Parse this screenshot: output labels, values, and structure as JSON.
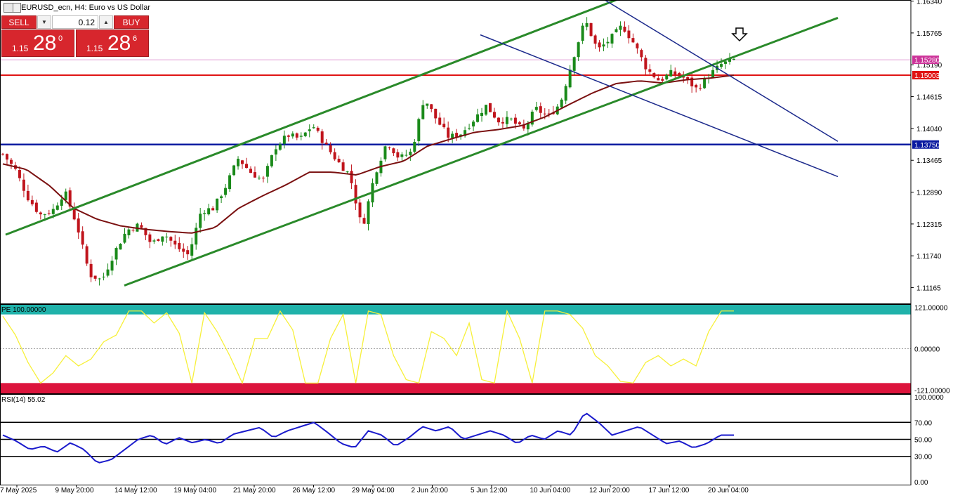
{
  "header": {
    "title": "EURUSD_ecn, H4:  Euro vs US Dollar"
  },
  "trade_panel": {
    "sell_label": "SELL",
    "buy_label": "BUY",
    "lot": "0.12",
    "sell_price": {
      "small": "1.15",
      "big": "28",
      "sup": "0"
    },
    "buy_price": {
      "small": "1.15",
      "big": "28",
      "sup": "6"
    }
  },
  "colors": {
    "bull": "#1a8a1a",
    "bear": "#c0141c",
    "ma": "#7a1010",
    "channel_green": "#2a8a2a",
    "channel_blue": "#1c2a8c",
    "level_red": "#e01414",
    "level_blue": "#0a1aa0",
    "current_price": "#cc3399",
    "ind_zone_top": "#20b2aa",
    "ind_zone_bottom": "#dc143c",
    "ind_line": "#f7f03a",
    "rsi_line": "#1a1acc"
  },
  "chart_data": [
    {
      "type": "line",
      "subtype": "candlestick",
      "series": [
        {
          "name": "EURUSD_ecn, H4"
        }
      ],
      "ylim": [
        1.1088,
        1.1636
      ],
      "price_axis_ticks": [
        "1.16340",
        "1.15765",
        "1.15190",
        "1.14615",
        "1.14040",
        "1.13465",
        "1.12890",
        "1.12315",
        "1.11740",
        "1.11165"
      ],
      "time_axis_labels": [
        "7 May 2025",
        "9 May 20:00",
        "14 May 12:00",
        "19 May 04:00",
        "21 May 20:00",
        "26 May 12:00",
        "29 May 04:00",
        "2 Jun 20:00",
        "5 Jun 12:00",
        "10 Jun 04:00",
        "12 Jun 20:00",
        "17 Jun 12:00",
        "20 Jun 04:00"
      ],
      "price_labels": [
        {
          "text": "1.15280",
          "value": 1.1528,
          "role": "current"
        },
        {
          "text": "1.15003",
          "value": 1.15003,
          "role": "red-level"
        },
        {
          "text": "1.13750",
          "value": 1.1375,
          "role": "blue-level"
        }
      ],
      "close_anchors": [
        1.1358,
        1.133,
        1.128,
        1.1248,
        1.1255,
        1.129,
        1.1228,
        1.114,
        1.113,
        1.118,
        1.122,
        1.123,
        1.1195,
        1.1215,
        1.119,
        1.1175,
        1.1255,
        1.126,
        1.13,
        1.135,
        1.1325,
        1.131,
        1.137,
        1.1392,
        1.1385,
        1.141,
        1.1375,
        1.1345,
        1.132,
        1.1222,
        1.132,
        1.138,
        1.135,
        1.1362,
        1.146,
        1.142,
        1.1388,
        1.1395,
        1.142,
        1.1445,
        1.1418,
        1.142,
        1.14,
        1.144,
        1.1425,
        1.145,
        1.153,
        1.16,
        1.1545,
        1.1565,
        1.159,
        1.1555,
        1.151,
        1.149,
        1.1505,
        1.1495,
        1.1475,
        1.15,
        1.152,
        1.1528
      ],
      "ma_anchors": [
        1.134,
        1.133,
        1.13,
        1.126,
        1.124,
        1.1228,
        1.1222,
        1.1218,
        1.1215,
        1.1225,
        1.126,
        1.1282,
        1.1302,
        1.1325,
        1.1325,
        1.132,
        1.1335,
        1.1345,
        1.1372,
        1.1385,
        1.1397,
        1.1402,
        1.1409,
        1.1425,
        1.1447,
        1.1468,
        1.1485,
        1.149,
        1.1486,
        1.1492,
        1.1495,
        1.15003
      ],
      "green_channel": [
        {
          "points": [
            [
              "7 May 2025",
              1.122
            ],
            [
              "12 Jun 20:00",
              1.1632
            ]
          ]
        },
        {
          "points": [
            [
              "14 May 12:00",
              1.1128
            ],
            [
              "20 Jun 04:00",
              1.153
            ]
          ]
        }
      ],
      "blue_channel": [
        {
          "points": [
            [
              "12 Jun 20:00",
              1.163
            ],
            [
              "20 Jun 04:00",
              1.15
            ]
          ]
        },
        {
          "points": [
            [
              "5 Jun 12:00",
              1.1565
            ],
            [
              "20 Jun 04:00",
              1.1395
            ]
          ]
        }
      ]
    },
    {
      "type": "line",
      "legend_label": "PE 100.00000",
      "axis_ticks": [
        "121.00000",
        "0.00000",
        "-121.00000"
      ],
      "ylim": [
        -130,
        130
      ],
      "zone_levels": [
        100,
        -100
      ],
      "value_anchors": [
        95,
        40,
        -40,
        -100,
        -70,
        -20,
        -50,
        -30,
        20,
        40,
        110,
        110,
        75,
        105,
        45,
        -100,
        105,
        50,
        -20,
        -100,
        30,
        30,
        110,
        55,
        -100,
        -100,
        30,
        100,
        -100,
        110,
        100,
        -20,
        -90,
        -100,
        50,
        30,
        -20,
        75,
        -90,
        -100,
        110,
        30,
        -100,
        110,
        110,
        100,
        60,
        -20,
        -50,
        -95,
        -100,
        -40,
        -20,
        -50,
        -30,
        -50,
        50,
        110,
        110
      ]
    },
    {
      "type": "line",
      "legend_label": "RSI(14) 55.02",
      "axis_ticks": [
        "100.0000",
        "70.00",
        "50.00",
        "30.00",
        "0.00"
      ],
      "ylim": [
        0,
        100
      ],
      "levels": [
        70,
        50,
        30
      ],
      "value_anchors": [
        55,
        48,
        38,
        42,
        35,
        46,
        38,
        22,
        26,
        38,
        50,
        55,
        44,
        52,
        46,
        50,
        45,
        56,
        60,
        64,
        52,
        60,
        65,
        70,
        58,
        45,
        40,
        60,
        55,
        42,
        52,
        65,
        60,
        65,
        50,
        55,
        60,
        55,
        45,
        55,
        50,
        60,
        55,
        82,
        70,
        55,
        60,
        65,
        55,
        45,
        48,
        40,
        45,
        55,
        55
      ]
    }
  ]
}
